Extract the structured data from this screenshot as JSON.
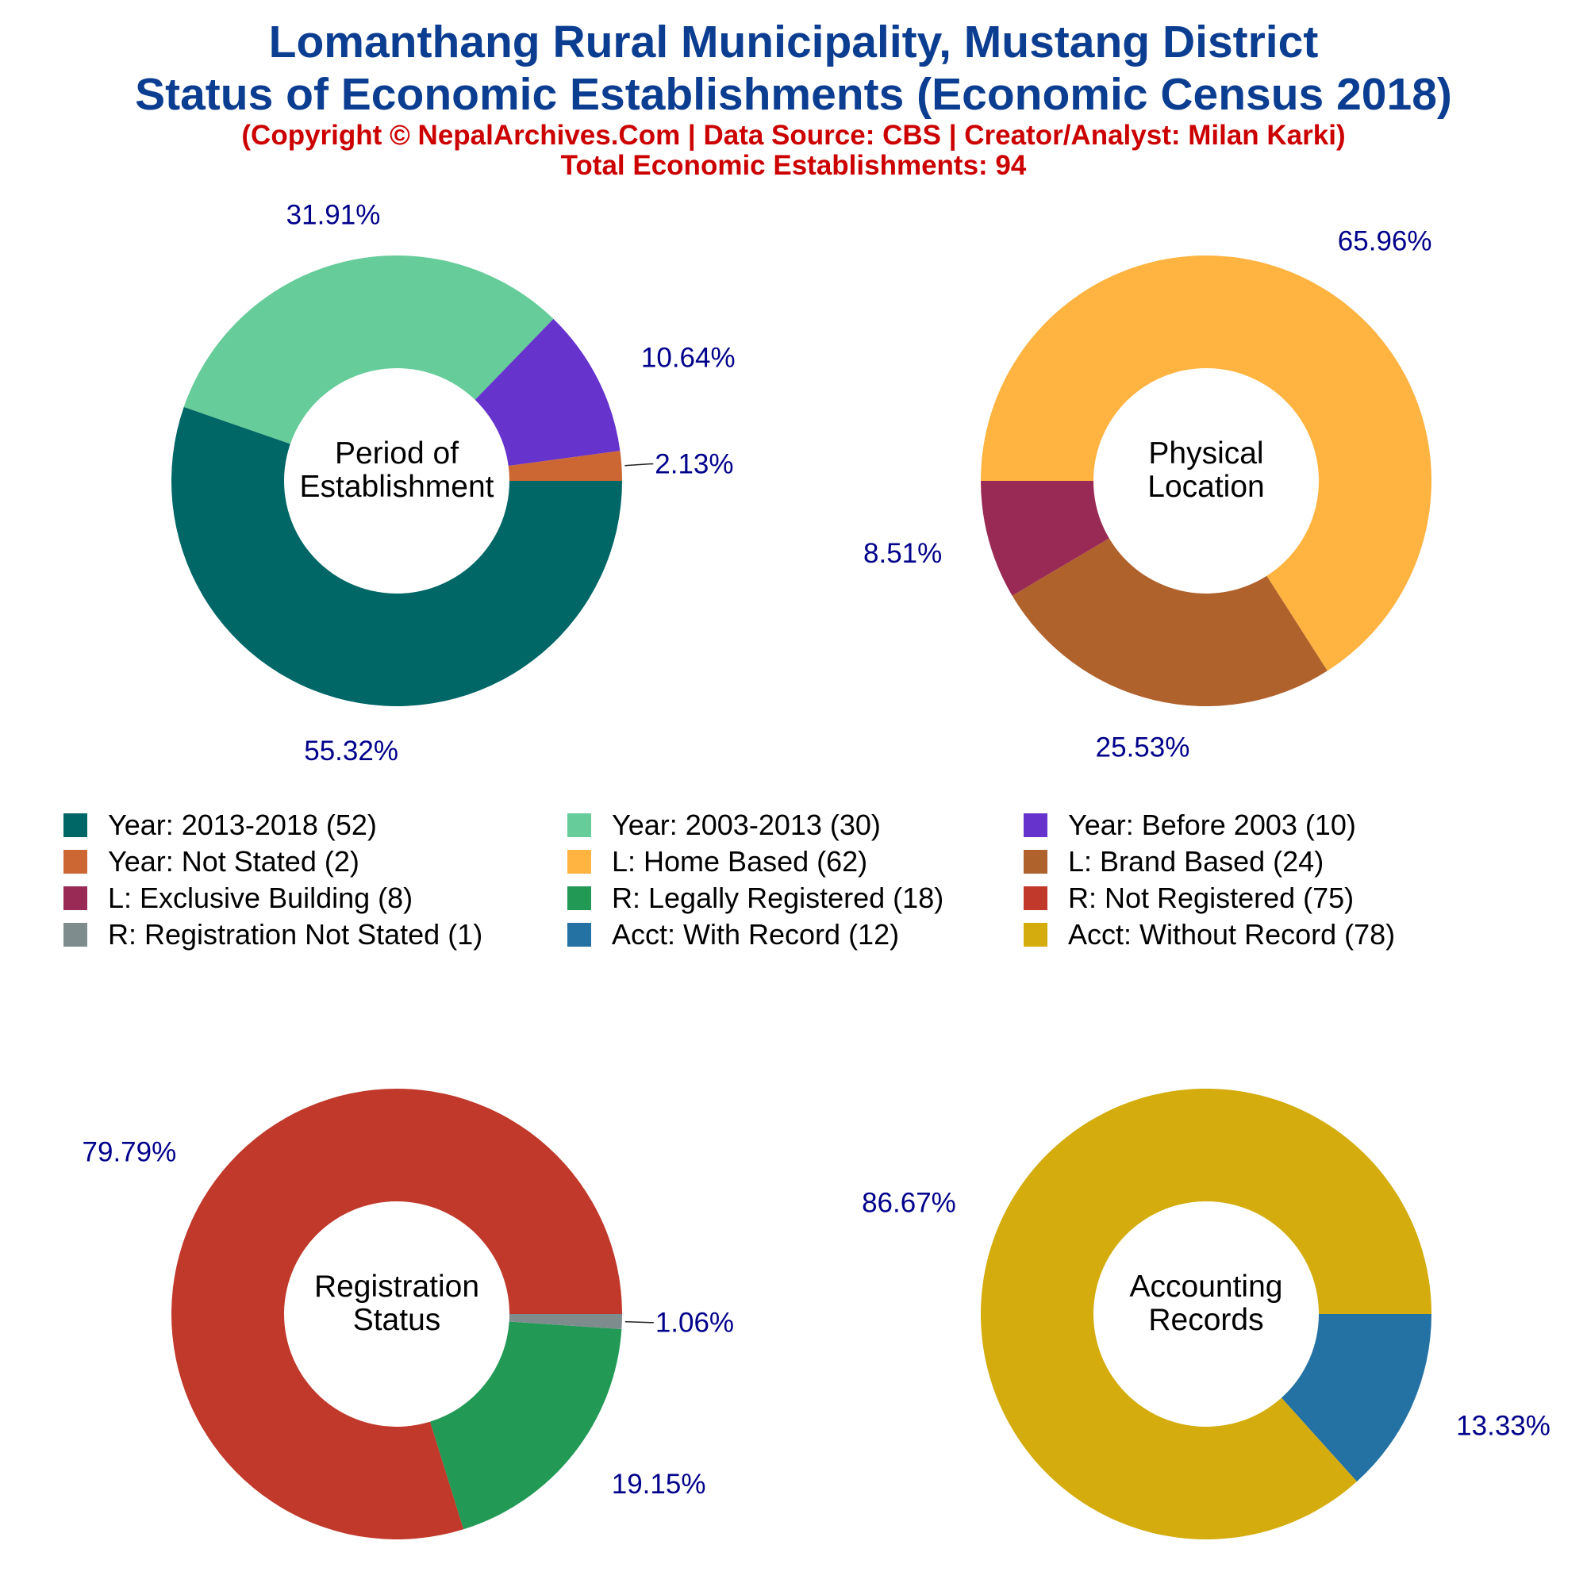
{
  "title_line1": "Lomanthang Rural Municipality, Mustang District",
  "title_line2": "Status of Economic Establishments (Economic Census 2018)",
  "subtitle": "(Copyright © NepalArchives.Com | Data Source: CBS | Creator/Analyst: Milan Karki)",
  "total_label": "Total Economic Establishments: 94",
  "legend": [
    {
      "label": "Year: 2013-2018 (52)",
      "color": "#006666"
    },
    {
      "label": "Year: 2003-2013 (30)",
      "color": "#66cc99"
    },
    {
      "label": "Year: Before 2003 (10)",
      "color": "#6633cc"
    },
    {
      "label": "Year: Not Stated (2)",
      "color": "#cc6633"
    },
    {
      "label": "L: Home Based (62)",
      "color": "#ffb340"
    },
    {
      "label": "L: Brand Based (24)",
      "color": "#b0622d"
    },
    {
      "label": "L: Exclusive Building (8)",
      "color": "#992a55"
    },
    {
      "label": "R: Legally Registered (18)",
      "color": "#229955"
    },
    {
      "label": "R: Not Registered (75)",
      "color": "#c0392b"
    },
    {
      "label": "R: Registration Not Stated (1)",
      "color": "#7f8c8d"
    },
    {
      "label": "Acct: With Record (12)",
      "color": "#2471a3"
    },
    {
      "label": "Acct: Without Record (78)",
      "color": "#d4ac0d"
    }
  ],
  "chart_data": [
    {
      "type": "pie",
      "center_label": [
        "Period of",
        "Establishment"
      ],
      "slices": [
        {
          "name": "Year: 2013-2018",
          "value": 52,
          "pct_label": "55.32%",
          "color": "#006666"
        },
        {
          "name": "Year: 2003-2013",
          "value": 30,
          "pct_label": "31.91%",
          "color": "#66cc99"
        },
        {
          "name": "Year: Before 2003",
          "value": 10,
          "pct_label": "10.64%",
          "color": "#6633cc"
        },
        {
          "name": "Year: Not Stated",
          "value": 2,
          "pct_label": "2.13%",
          "color": "#cc6633"
        }
      ]
    },
    {
      "type": "pie",
      "center_label": [
        "Physical",
        "Location"
      ],
      "slices": [
        {
          "name": "L: Home Based",
          "value": 62,
          "pct_label": "65.96%",
          "color": "#ffb340"
        },
        {
          "name": "L: Brand Based",
          "value": 24,
          "pct_label": "25.53%",
          "color": "#b0622d"
        },
        {
          "name": "L: Exclusive Building",
          "value": 8,
          "pct_label": "8.51%",
          "color": "#992a55"
        }
      ]
    },
    {
      "type": "pie",
      "center_label": [
        "Registration",
        "Status"
      ],
      "slices": [
        {
          "name": "R: Not Registered",
          "value": 75,
          "pct_label": "79.79%",
          "color": "#c0392b"
        },
        {
          "name": "R: Legally Registered",
          "value": 18,
          "pct_label": "19.15%",
          "color": "#229955"
        },
        {
          "name": "R: Registration Not Stated",
          "value": 1,
          "pct_label": "1.06%",
          "color": "#7f8c8d"
        }
      ]
    },
    {
      "type": "pie",
      "center_label": [
        "Accounting",
        "Records"
      ],
      "slices": [
        {
          "name": "Acct: Without Record",
          "value": 78,
          "pct_label": "86.67%",
          "color": "#d4ac0d"
        },
        {
          "name": "Acct: With Record",
          "value": 12,
          "pct_label": "13.33%",
          "color": "#2471a3"
        }
      ]
    }
  ]
}
